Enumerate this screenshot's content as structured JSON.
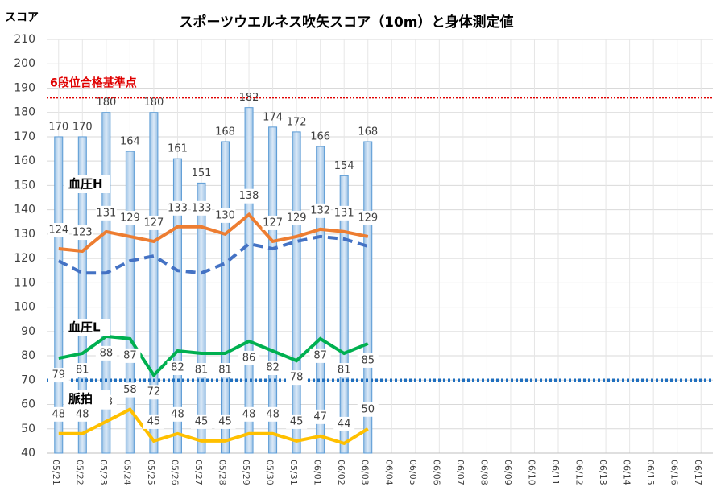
{
  "chart_data": {
    "type": "bar",
    "title": "スポーツウエルネス吹矢スコア（10m）と身体測定値",
    "y_label": "スコア",
    "categories": [
      "05/21",
      "05/22",
      "05/23",
      "05/24",
      "05/25",
      "05/26",
      "05/27",
      "05/28",
      "05/29",
      "05/30",
      "05/31",
      "06/01",
      "06/02",
      "06/03",
      "06/04",
      "06/05",
      "06/06",
      "06/07",
      "06/08",
      "06/09",
      "06/10",
      "06/11",
      "06/12",
      "06/13",
      "06/14",
      "06/15",
      "06/16",
      "06/17"
    ],
    "values": [
      170,
      170,
      180,
      164,
      180,
      161,
      151,
      168,
      182,
      174,
      172,
      166,
      154,
      168,
      null,
      null,
      null,
      null,
      null,
      null,
      null,
      null,
      null,
      null,
      null,
      null,
      null,
      null
    ],
    "color": "#9dc3e6",
    "lines": [
      {
        "name": "血圧H",
        "color": "#ed7d31",
        "dash": false,
        "values": [
          124,
          123,
          131,
          129,
          127,
          133,
          133,
          130,
          138,
          127,
          129,
          132,
          131,
          129,
          null,
          null,
          null,
          null,
          null,
          null,
          null,
          null,
          null,
          null,
          null,
          null,
          null,
          null
        ]
      },
      {
        "color": "#4472c4",
        "dash": true,
        "values": [
          119,
          114,
          114,
          119,
          121,
          115,
          114,
          118,
          126,
          124,
          127,
          129,
          128,
          125,
          null,
          null,
          null,
          null,
          null,
          null,
          null,
          null,
          null,
          null,
          null,
          null,
          null,
          null
        ]
      },
      {
        "name": "血圧L",
        "color": "#00b050",
        "dash": false,
        "values": [
          79,
          81,
          88,
          87,
          72,
          82,
          81,
          81,
          86,
          82,
          78,
          87,
          81,
          85,
          null,
          null,
          null,
          null,
          null,
          null,
          null,
          null,
          null,
          null,
          null,
          null,
          null,
          null
        ]
      },
      {
        "name": "脈拍",
        "color": "#ffc000",
        "dash": false,
        "values": [
          48,
          48,
          53,
          58,
          45,
          48,
          45,
          45,
          48,
          48,
          45,
          47,
          44,
          50,
          null,
          null,
          null,
          null,
          null,
          null,
          null,
          null,
          null,
          null,
          null,
          null,
          null,
          null
        ]
      }
    ],
    "reference_lines": [
      {
        "label": "6段位合格基準点",
        "value": 186,
        "color": "#e00000"
      },
      {
        "value": 70,
        "color": "#1f6fbf"
      }
    ],
    "ylim": [
      40,
      210
    ],
    "yticks": [
      40,
      50,
      60,
      70,
      80,
      90,
      100,
      110,
      120,
      130,
      140,
      150,
      160,
      170,
      180,
      190,
      200,
      210
    ],
    "grid": true
  }
}
